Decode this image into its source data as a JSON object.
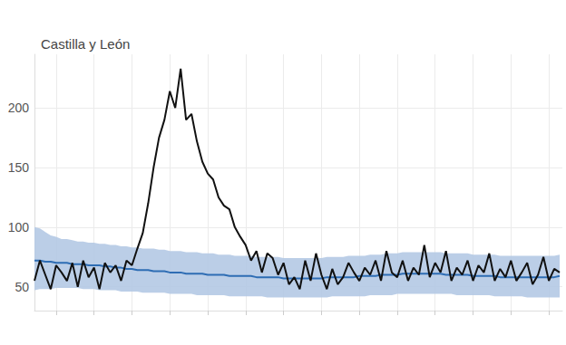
{
  "chart_data": {
    "type": "line",
    "title": "Castilla y León",
    "x": [
      0,
      2,
      4,
      6,
      8,
      10,
      12,
      14,
      16,
      18,
      20,
      22,
      24,
      26,
      28,
      30,
      32,
      34,
      36,
      38,
      40,
      42,
      44,
      46,
      48,
      50,
      52,
      54,
      56,
      58,
      60,
      62,
      64,
      66,
      68,
      70,
      72,
      74,
      76,
      78,
      80,
      82,
      84,
      86,
      88,
      90,
      92,
      94,
      96,
      98,
      100,
      102,
      104,
      106,
      108,
      110,
      112,
      114,
      116,
      118,
      120,
      122,
      124,
      126,
      128,
      130,
      132,
      134,
      136,
      138,
      140,
      142,
      144,
      146,
      148,
      150,
      152,
      154,
      156,
      158,
      160,
      162,
      164,
      166,
      168,
      170,
      172,
      174,
      176,
      178,
      180,
      182,
      184,
      186,
      188,
      190,
      192,
      194
    ],
    "xlim": [
      0,
      195
    ],
    "xticks": [
      8,
      22,
      36,
      50,
      64,
      78,
      92,
      106,
      120,
      134,
      148,
      162,
      176,
      190
    ],
    "ylim": [
      30,
      245
    ],
    "yticks": [
      50,
      100,
      150,
      200
    ],
    "grid": true,
    "tick_labels": "y",
    "series": [
      {
        "color": "#111111",
        "values": [
          55,
          72,
          60,
          48,
          68,
          62,
          55,
          70,
          50,
          72,
          58,
          66,
          48,
          70,
          62,
          68,
          55,
          72,
          68,
          82,
          95,
          120,
          150,
          175,
          190,
          214,
          200,
          233,
          190,
          195,
          172,
          155,
          145,
          140,
          125,
          118,
          115,
          100,
          92,
          85,
          72,
          80,
          62,
          78,
          74,
          60,
          70,
          52,
          58,
          48,
          72,
          55,
          78,
          60,
          48,
          65,
          52,
          58,
          70,
          62,
          55,
          66,
          60,
          72,
          55,
          80,
          62,
          58,
          72,
          55,
          66,
          60,
          85,
          58,
          70,
          62,
          80,
          55,
          66,
          60,
          72,
          55,
          68,
          62,
          78,
          55,
          65,
          58,
          72,
          55,
          62,
          70,
          52,
          60,
          75,
          55,
          65,
          62
        ]
      },
      {
        "color": "#2e6db4",
        "values": [
          72,
          72,
          71,
          71,
          70,
          70,
          70,
          69,
          69,
          69,
          68,
          68,
          68,
          67,
          67,
          66,
          66,
          65,
          65,
          64,
          64,
          64,
          63,
          63,
          63,
          62,
          62,
          62,
          61,
          61,
          61,
          61,
          60,
          60,
          60,
          60,
          59,
          59,
          59,
          59,
          59,
          58,
          58,
          58,
          58,
          58,
          57,
          57,
          57,
          57,
          57,
          57,
          57,
          57,
          58,
          58,
          58,
          58,
          58,
          58,
          59,
          59,
          59,
          59,
          60,
          60,
          60,
          60,
          61,
          61,
          61,
          61,
          61,
          61,
          61,
          61,
          60,
          60,
          60,
          60,
          60,
          59,
          59,
          59,
          59,
          59,
          58,
          58,
          58,
          58,
          58,
          58,
          58,
          58,
          58,
          58,
          58,
          59
        ],
        "upper": [
          100,
          99,
          96,
          93,
          92,
          90,
          90,
          89,
          88,
          88,
          87,
          87,
          86,
          86,
          85,
          85,
          84,
          84,
          83,
          83,
          82,
          82,
          82,
          81,
          81,
          80,
          80,
          80,
          79,
          79,
          79,
          78,
          78,
          78,
          77,
          77,
          77,
          76,
          76,
          76,
          76,
          75,
          75,
          75,
          75,
          75,
          74,
          74,
          74,
          74,
          74,
          74,
          74,
          74,
          75,
          75,
          75,
          75,
          76,
          76,
          76,
          76,
          77,
          77,
          77,
          78,
          78,
          78,
          79,
          79,
          79,
          79,
          79,
          79,
          79,
          79,
          78,
          78,
          78,
          78,
          78,
          77,
          77,
          77,
          77,
          77,
          76,
          76,
          76,
          76,
          76,
          76,
          76,
          76,
          76,
          76,
          76,
          77
        ],
        "lower": [
          47,
          48,
          48,
          48,
          49,
          49,
          49,
          49,
          49,
          48,
          48,
          48,
          47,
          47,
          47,
          47,
          46,
          46,
          46,
          46,
          45,
          45,
          45,
          45,
          45,
          44,
          44,
          44,
          44,
          44,
          43,
          43,
          43,
          43,
          43,
          43,
          42,
          42,
          42,
          42,
          42,
          42,
          42,
          41,
          41,
          41,
          41,
          41,
          41,
          41,
          41,
          41,
          41,
          41,
          41,
          42,
          42,
          42,
          42,
          42,
          42,
          42,
          43,
          43,
          43,
          43,
          43,
          44,
          44,
          44,
          44,
          44,
          44,
          44,
          44,
          44,
          44,
          44,
          43,
          43,
          43,
          43,
          43,
          43,
          43,
          42,
          42,
          42,
          42,
          42,
          42,
          41,
          41,
          41,
          41,
          41,
          41,
          41
        ]
      }
    ]
  }
}
